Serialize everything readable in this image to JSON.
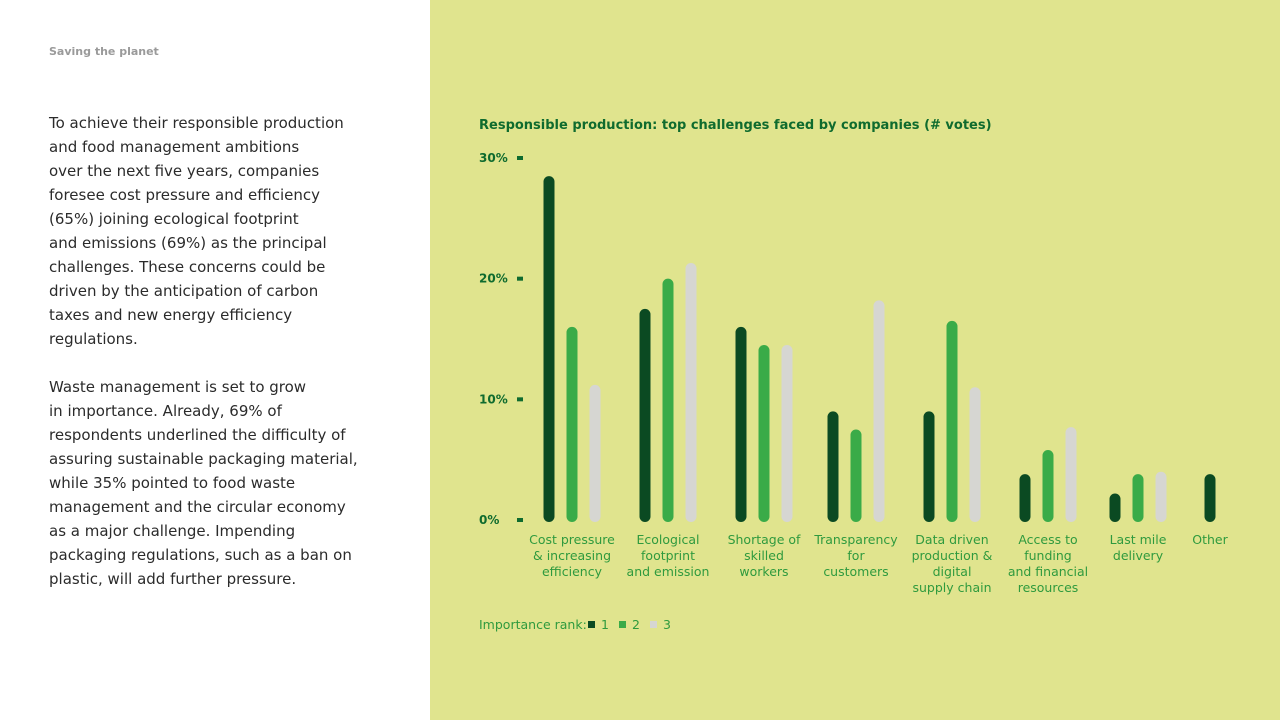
{
  "header": {
    "section_label": "Saving the planet"
  },
  "text": {
    "paragraph1": [
      "To achieve their responsible production",
      "and food management ambitions",
      "over the next five years, companies",
      "foresee cost pressure and efficiency",
      "(65%) joining ecological footprint",
      "and emissions (69%) as the principal",
      "challenges. These concerns could be",
      "driven by the anticipation of carbon",
      "taxes and new energy efficiency",
      "regulations."
    ],
    "paragraph2": [
      "Waste management is set to grow",
      "in importance. Already, 69% of",
      "respondents underlined the difficulty of",
      "assuring sustainable packaging material,",
      "while 35% pointed to food waste",
      "management and the circular economy",
      "as a major challenge. Impending",
      "packaging regulations, such as a ban on",
      "plastic, will add further pressure."
    ]
  },
  "colors": {
    "rank1": "#0b4a22",
    "rank2": "#3aab48",
    "rank3": "#d6d6d2",
    "panel": "#e0e48e",
    "accent": "#0f6b2e"
  },
  "chart_data": {
    "type": "bar",
    "title": "Responsible production: top challenges faced by companies (# votes)",
    "ylim": [
      0,
      30
    ],
    "yticks": [
      0,
      10,
      20,
      30
    ],
    "ytick_labels": [
      "0%",
      "10%",
      "20%",
      "30%"
    ],
    "categories": [
      [
        "Cost pressure",
        "& increasing",
        "efficiency"
      ],
      [
        "Ecological",
        "footprint",
        "and emission"
      ],
      [
        "Shortage of",
        "skilled",
        "workers"
      ],
      [
        "Transparency",
        "for",
        "customers"
      ],
      [
        "Data driven",
        "production &",
        "digital",
        "supply chain"
      ],
      [
        "Access to",
        "funding",
        "and financial",
        "resources"
      ],
      [
        "Last mile",
        "delivery"
      ],
      [
        "Other"
      ]
    ],
    "series": [
      {
        "name": "1",
        "values": [
          28.5,
          17.5,
          16,
          9,
          9,
          3.8,
          2.2,
          3.8
        ]
      },
      {
        "name": "2",
        "values": [
          16,
          20,
          14.5,
          7.5,
          16.5,
          5.8,
          3.8,
          null
        ]
      },
      {
        "name": "3",
        "values": [
          11.2,
          21.3,
          14.5,
          18.2,
          11,
          7.7,
          4,
          null
        ]
      }
    ],
    "legend": {
      "label": "Importance rank:",
      "position": "bottom-left"
    },
    "grid": false
  }
}
